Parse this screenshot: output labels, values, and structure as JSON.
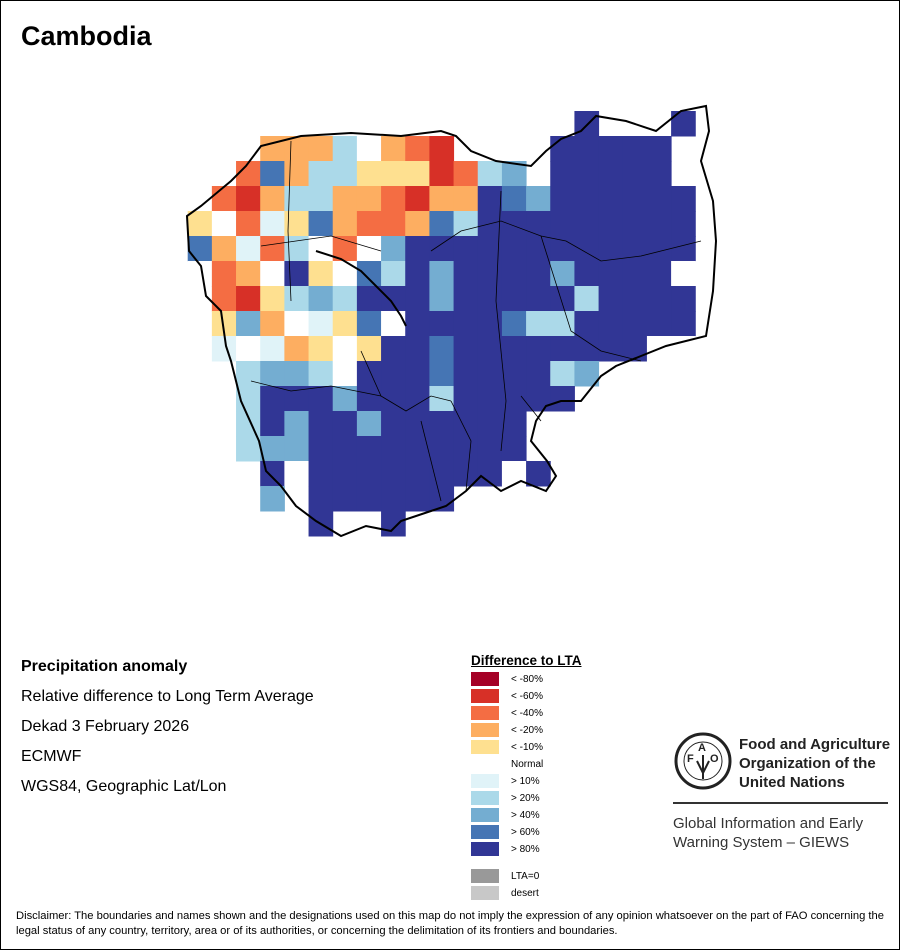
{
  "title": "Cambodia",
  "info": {
    "line1": "Precipitation anomaly",
    "line2": "Relative difference to Long Term Average",
    "line3": "Dekad 3 February 2026",
    "line4": "ECMWF",
    "line5": "WGS84, Geographic Lat/Lon"
  },
  "legend": {
    "title": "Difference to LTA",
    "items": [
      {
        "key": "a",
        "label": "< -80%",
        "color": "#a50026"
      },
      {
        "key": "b",
        "label": "< -60%",
        "color": "#d73027"
      },
      {
        "key": "c",
        "label": "< -40%",
        "color": "#f46d43"
      },
      {
        "key": "d",
        "label": "< -20%",
        "color": "#fdae61"
      },
      {
        "key": "e",
        "label": "< -10%",
        "color": "#fee090"
      },
      {
        "key": "n",
        "label": "Normal",
        "color": "#ffffff"
      },
      {
        "key": "f",
        "label": "> 10%",
        "color": "#e0f3f8"
      },
      {
        "key": "g",
        "label": "> 20%",
        "color": "#abd9e9"
      },
      {
        "key": "h",
        "label": "> 40%",
        "color": "#74add1"
      },
      {
        "key": "i",
        "label": "> 60%",
        "color": "#4575b4"
      },
      {
        "key": "j",
        "label": "> 80%",
        "color": "#313695"
      },
      {
        "key": "z",
        "label": "LTA=0",
        "color": "#999999"
      },
      {
        "key": "y",
        "label": "desert",
        "color": "#c8c8c8"
      }
    ]
  },
  "anomaly_grid": [
    "................j...j",
    "...dddgndcb....jjjjj.",
    "..cidggeeebcgh.jjjjj.",
    ".cbdggddcbddjihjjjjjj",
    "encfeidccdigjjjjjjjjj",
    "idfcgncnhjjjjjjjjjjjj",
    "ncdnjenigjhjjjjhjjjjn",
    ".cbeghgjjjhjjjjjgjjjj",
    ".ehdnfeinjjjjiggjjjjj",
    ".fnfdenejjijjjjjjjjnn",
    "..ghhgnjjjijjjjgh....",
    "..gjjjhjjjgjjjjj.....",
    "..gjhjjhjjjjjj.......",
    "..ghhjjjjjjjjj.......",
    "...jnjjjjjjjjnj......",
    "...h.jjjjjj..........",
    ".....j..j............"
  ],
  "logo": {
    "org_name_1": "Food and Agriculture",
    "org_name_2": "Organization of the",
    "org_name_3": "United Nations",
    "logo_text": "FAO FIAT PANIS",
    "giews_1": "Global Information and Early",
    "giews_2": "Warning System – GIEWS"
  },
  "disclaimer": "Disclaimer: The boundaries and names shown and the designations used on this map do not imply the expression of any opinion whatsoever on the part of FAO concerning the legal status of any country, territory, area or of its authorities, or concerning the delimitation of its frontiers and boundaries."
}
